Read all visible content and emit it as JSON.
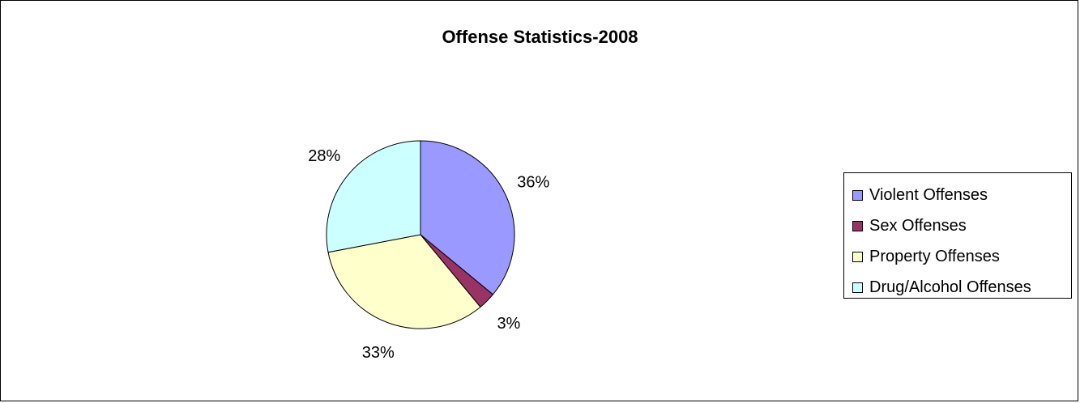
{
  "chart_data": {
    "type": "pie",
    "title": "Offense Statistics-2008",
    "legend_position": "right",
    "slices": [
      {
        "name": "Violent Offenses",
        "value": 36,
        "label": "36%",
        "color": "#9999ff"
      },
      {
        "name": "Sex Offenses",
        "value": 3,
        "label": "3%",
        "color": "#993366"
      },
      {
        "name": "Property Offenses",
        "value": 33,
        "label": "33%",
        "color": "#ffffcc"
      },
      {
        "name": "Drug/Alcohol Offenses",
        "value": 28,
        "label": "28%",
        "color": "#ccffff"
      }
    ]
  }
}
